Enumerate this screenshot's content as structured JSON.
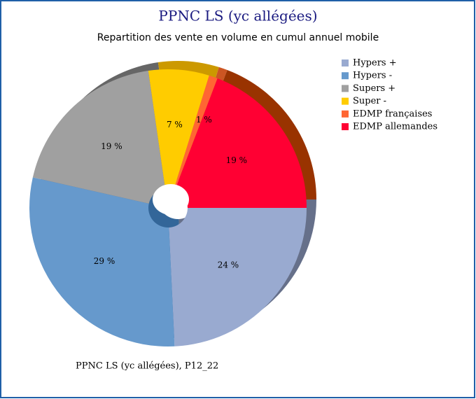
{
  "chart_data": {
    "type": "pie",
    "title": "PPNC LS (yc allégées)",
    "subtitle": "Repartition des vente en volume en cumul annuel mobile",
    "footnote": "PPNC LS (yc allégées), P12_22",
    "categories": [
      "Hypers +",
      "Hypers -",
      "Supers +",
      "Super -",
      "EDMP françaises",
      "EDMP allemandes"
    ],
    "values": [
      24,
      29,
      19,
      7,
      1,
      19
    ],
    "value_labels": [
      "24 %",
      "29 %",
      "19 %",
      "7 %",
      "1 %",
      "19 %"
    ],
    "colors": [
      "#99aad0",
      "#6699cc",
      "#a0a0a0",
      "#ffcc00",
      "#ff6633",
      "#ff0033"
    ],
    "shadow_colors": [
      "#66708a",
      "#336699",
      "#666666",
      "#cc9900",
      "#cc5522",
      "#993300"
    ],
    "legend": "top-right"
  }
}
